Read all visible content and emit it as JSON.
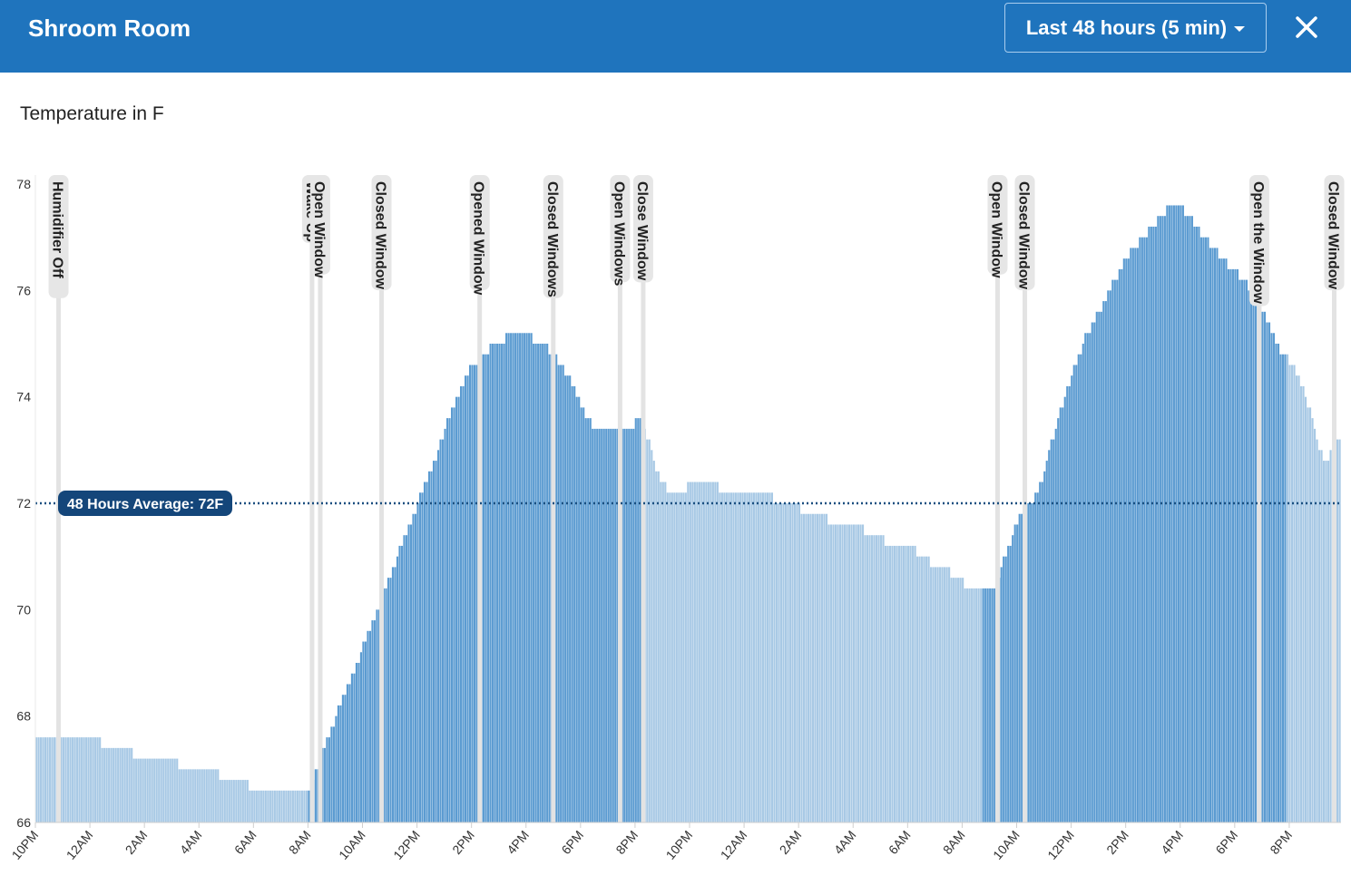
{
  "header": {
    "title": "Shroom Room",
    "range_label": "Last 48 hours (5 min)",
    "close_icon": "close-icon",
    "caret_icon": "chevron-down-icon"
  },
  "colors": {
    "header_bg": "#1f74bd",
    "bar_light": "#a8c9e5",
    "bar_dark": "#5b9bd1",
    "avg_line": "#1a4f80",
    "avg_badge": "#14467a",
    "event_line": "#e3e3e3"
  },
  "chart_data": {
    "type": "bar",
    "title": "Temperature in F",
    "ylim": [
      66,
      78
    ],
    "y_ticks": [
      "66",
      "68",
      "70",
      "72",
      "74",
      "76",
      "78"
    ],
    "x_tick_labels": [
      "10PM",
      "12AM",
      "2AM",
      "4AM",
      "6AM",
      "8AM",
      "10AM",
      "12PM",
      "2PM",
      "4PM",
      "6PM",
      "8PM",
      "10PM",
      "12AM",
      "2AM",
      "4AM",
      "6AM",
      "8AM",
      "10AM",
      "12PM",
      "2PM",
      "4PM",
      "6PM",
      "8PM"
    ],
    "x_range_hours": [
      0,
      47.9
    ],
    "average": {
      "label": "48 Hours Average: 72F",
      "value": 72
    },
    "series_points": [
      [
        0,
        67.6
      ],
      [
        0.4,
        67.5
      ],
      [
        1.2,
        67.6
      ],
      [
        2.4,
        67.5
      ],
      [
        3.5,
        67.3
      ],
      [
        5.2,
        67.1
      ],
      [
        6.7,
        66.9
      ],
      [
        7.8,
        66.7
      ],
      [
        8.9,
        66.6
      ],
      [
        10.0,
        66.6
      ],
      [
        10.3,
        67.0
      ],
      [
        10.6,
        67.5
      ],
      [
        11.0,
        68.0
      ],
      [
        11.5,
        68.6
      ],
      [
        12.0,
        69.3
      ],
      [
        12.6,
        70.1
      ],
      [
        13.1,
        70.8
      ],
      [
        13.6,
        71.5
      ],
      [
        14.0,
        72.0
      ],
      [
        14.5,
        72.6
      ],
      [
        15.0,
        73.4
      ],
      [
        15.5,
        74.0
      ],
      [
        16.0,
        74.6
      ],
      [
        16.6,
        74.9
      ],
      [
        17.2,
        75.1
      ],
      [
        17.7,
        75.2
      ],
      [
        18.2,
        75.1
      ],
      [
        18.8,
        74.9
      ],
      [
        19.3,
        74.6
      ],
      [
        19.8,
        74.1
      ],
      [
        20.2,
        73.6
      ],
      [
        20.6,
        73.4
      ],
      [
        21.3,
        73.4
      ],
      [
        21.8,
        73.4
      ],
      [
        22.2,
        73.6
      ],
      [
        22.5,
        73.1
      ],
      [
        22.8,
        72.6
      ],
      [
        23.1,
        72.3
      ],
      [
        23.7,
        72.2
      ],
      [
        24.2,
        72.5
      ],
      [
        25.0,
        72.3
      ],
      [
        26.0,
        72.2
      ],
      [
        27.0,
        72.1
      ],
      [
        27.7,
        72.0
      ],
      [
        28.3,
        71.8
      ],
      [
        29.0,
        71.7
      ],
      [
        30.0,
        71.6
      ],
      [
        30.8,
        71.4
      ],
      [
        31.5,
        71.2
      ],
      [
        32.3,
        71.1
      ],
      [
        32.8,
        70.9
      ],
      [
        33.5,
        70.7
      ],
      [
        34.0,
        70.5
      ],
      [
        34.5,
        70.3
      ],
      [
        35.0,
        70.3
      ],
      [
        35.3,
        70.6
      ],
      [
        35.7,
        71.2
      ],
      [
        36.1,
        71.8
      ],
      [
        36.6,
        72.1
      ],
      [
        37.0,
        72.6
      ],
      [
        37.5,
        73.6
      ],
      [
        38.0,
        74.4
      ],
      [
        38.5,
        75.1
      ],
      [
        39.0,
        75.6
      ],
      [
        39.5,
        76.1
      ],
      [
        40.0,
        76.6
      ],
      [
        40.5,
        76.9
      ],
      [
        41.0,
        77.2
      ],
      [
        41.5,
        77.5
      ],
      [
        41.8,
        77.7
      ],
      [
        42.1,
        77.5
      ],
      [
        42.6,
        77.2
      ],
      [
        43.0,
        76.9
      ],
      [
        43.5,
        76.6
      ],
      [
        44.1,
        76.3
      ],
      [
        44.6,
        76.0
      ],
      [
        45.1,
        75.5
      ],
      [
        45.6,
        74.9
      ],
      [
        46.1,
        74.6
      ],
      [
        46.5,
        74.2
      ],
      [
        46.9,
        73.4
      ],
      [
        47.3,
        72.7
      ],
      [
        47.6,
        73.1
      ],
      [
        47.9,
        73.2
      ]
    ],
    "highlight_ranges": [
      [
        10.0,
        22.0
      ],
      [
        22.0,
        22.3
      ],
      [
        34.7,
        45.9
      ]
    ],
    "events": [
      {
        "label": "Humidifier Off",
        "hour": 0.85
      },
      {
        "label": "Wake Up",
        "hour": 10.15
      },
      {
        "label": "Open Window",
        "hour": 10.45
      },
      {
        "label": "Closed Window",
        "hour": 12.7
      },
      {
        "label": "Opened Window",
        "hour": 16.3
      },
      {
        "label": "Closed Windows",
        "hour": 19.0
      },
      {
        "label": "Open Windows",
        "hour": 21.45
      },
      {
        "label": "Close Window",
        "hour": 22.3
      },
      {
        "label": "Open Window",
        "hour": 35.3
      },
      {
        "label": "Closed Window",
        "hour": 36.3
      },
      {
        "label": "Open the Window",
        "hour": 44.9
      },
      {
        "label": "Closed Window",
        "hour": 47.65
      }
    ]
  }
}
